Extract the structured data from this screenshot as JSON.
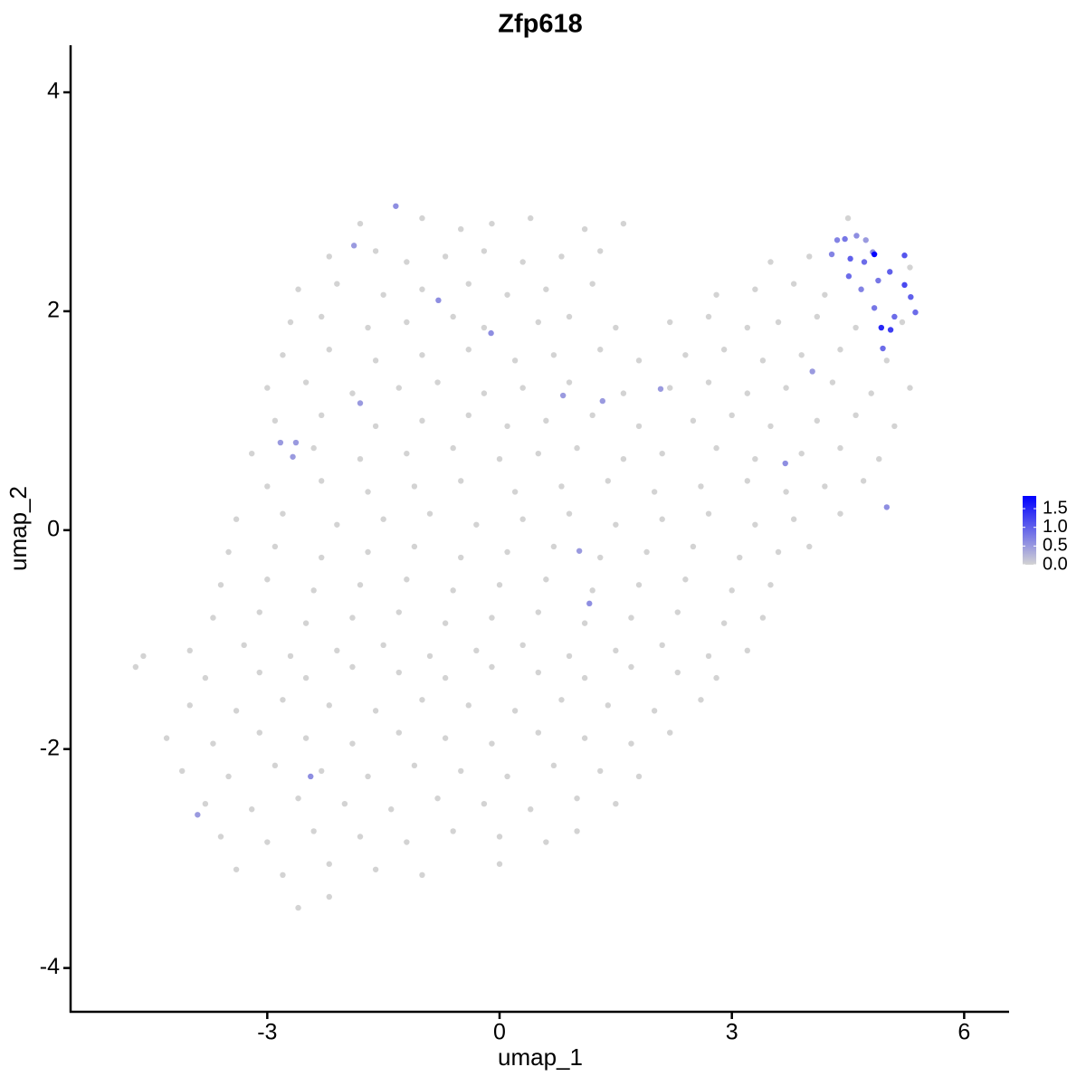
{
  "chart_data": {
    "type": "scatter",
    "title": "Zfp618",
    "xlabel": "umap_1",
    "ylabel": "umap_2",
    "xlim": [
      -5.54,
      6.58
    ],
    "ylim": [
      -4.4,
      4.43
    ],
    "xticks": [
      -3,
      0,
      3,
      6
    ],
    "yticks": [
      -4,
      -2,
      0,
      2,
      4
    ],
    "color_low": "#d3d3d3",
    "color_high": "#0000ff",
    "clim": [
      0,
      1.84
    ],
    "legend_ticks": [
      {
        "value": 0,
        "label": "0.0"
      },
      {
        "value": 0.5,
        "label": "0.5"
      },
      {
        "value": 1,
        "label": "1.0"
      },
      {
        "value": 1.5,
        "label": "1.5"
      }
    ],
    "x": [
      -1.8,
      -1.0,
      -0.5,
      -0.1,
      0.4,
      1.1,
      1.6,
      4.5,
      -2.2,
      -1.6,
      -1.2,
      -0.7,
      -0.2,
      0.3,
      0.8,
      1.3,
      3.5,
      4.0,
      5.3,
      -2.6,
      -2.1,
      -1.5,
      -1.0,
      -0.4,
      0.1,
      0.6,
      1.2,
      2.8,
      3.3,
      3.8,
      4.2,
      -2.7,
      -2.3,
      -1.7,
      -1.2,
      -0.6,
      -0.2,
      0.5,
      0.9,
      1.5,
      2.2,
      2.7,
      3.2,
      3.6,
      4.1,
      4.6,
      5.2,
      -2.8,
      -2.2,
      -1.6,
      -1.0,
      -0.4,
      0.2,
      0.7,
      1.3,
      1.8,
      2.4,
      2.9,
      3.4,
      3.9,
      4.4,
      5.0,
      -3.0,
      -2.5,
      -1.9,
      -1.3,
      -0.8,
      -0.2,
      0.3,
      0.9,
      1.6,
      2.2,
      2.7,
      3.2,
      3.7,
      4.3,
      4.8,
      5.3,
      -2.9,
      -2.3,
      -1.6,
      -1.0,
      -0.4,
      0.1,
      0.6,
      1.2,
      1.8,
      2.5,
      3.0,
      3.5,
      4.1,
      4.6,
      5.1,
      -3.2,
      -2.4,
      -1.8,
      -1.2,
      -0.6,
      0.0,
      0.5,
      1.0,
      1.6,
      2.1,
      2.8,
      3.3,
      3.9,
      4.4,
      4.9,
      -3.0,
      -2.3,
      -1.7,
      -1.1,
      -0.5,
      0.2,
      0.8,
      1.4,
      2.0,
      2.6,
      3.2,
      3.7,
      4.2,
      4.7,
      -3.4,
      -2.8,
      -2.1,
      -1.5,
      -0.9,
      -0.3,
      0.3,
      0.9,
      1.5,
      2.1,
      2.7,
      3.3,
      3.8,
      4.4,
      -3.5,
      -2.9,
      -2.3,
      -1.7,
      -1.1,
      -0.5,
      0.1,
      0.7,
      1.3,
      1.9,
      2.5,
      3.1,
      3.6,
      4.0,
      -3.6,
      -3.0,
      -2.4,
      -1.8,
      -1.2,
      -0.6,
      0.0,
      0.6,
      1.2,
      1.8,
      2.4,
      3.0,
      3.5,
      -3.7,
      -3.1,
      -2.5,
      -1.9,
      -1.3,
      -0.7,
      -0.1,
      0.5,
      1.1,
      1.7,
      2.3,
      2.9,
      3.4,
      -4.0,
      -3.3,
      -2.7,
      -2.1,
      -1.5,
      -0.9,
      -0.3,
      0.3,
      0.9,
      1.5,
      2.1,
      2.7,
      3.2,
      -4.7,
      -4.6,
      -3.8,
      -3.1,
      -2.5,
      -1.9,
      -1.3,
      -0.7,
      -0.1,
      0.5,
      1.1,
      1.7,
      2.3,
      2.8,
      -4.0,
      -3.4,
      -2.8,
      -2.2,
      -1.6,
      -1.0,
      -0.4,
      0.2,
      0.8,
      1.4,
      2.0,
      2.6,
      -4.3,
      -3.7,
      -3.1,
      -2.5,
      -1.9,
      -1.3,
      -0.7,
      -0.1,
      0.5,
      1.1,
      1.7,
      2.2,
      -4.1,
      -3.5,
      -2.9,
      -2.3,
      -1.7,
      -1.1,
      -0.5,
      0.1,
      0.7,
      1.3,
      1.8,
      -3.8,
      -3.2,
      -2.6,
      -2.0,
      -1.4,
      -0.8,
      -0.2,
      0.4,
      1.0,
      1.5,
      -3.6,
      -3.0,
      -2.4,
      -1.8,
      -1.2,
      -0.6,
      0.0,
      0.6,
      1.0,
      -3.4,
      -2.8,
      -2.2,
      -1.6,
      -1.0,
      0.0,
      -2.6,
      -2.2,
      4.46,
      4.82,
      4.29,
      4.53,
      4.84,
      4.71,
      5.04,
      5.23,
      5.23,
      5.31,
      5.37,
      4.89,
      4.51,
      4.67,
      4.84,
      4.93,
      5.05,
      5.1,
      4.95,
      4.36,
      4.61,
      4.73,
      5.0,
      3.69,
      4.04,
      2.08,
      1.33,
      0.82,
      -0.11,
      -0.79,
      -1.34,
      -1.88,
      -1.8,
      -2.83,
      -2.63,
      -2.67,
      1.03,
      1.16,
      -2.44,
      -3.9
    ],
    "y": [
      2.8,
      2.85,
      2.75,
      2.8,
      2.85,
      2.75,
      2.8,
      2.85,
      2.5,
      2.55,
      2.45,
      2.5,
      2.55,
      2.45,
      2.5,
      2.55,
      2.45,
      2.5,
      2.4,
      2.2,
      2.25,
      2.15,
      2.2,
      2.25,
      2.15,
      2.2,
      2.25,
      2.15,
      2.2,
      2.25,
      2.15,
      1.9,
      1.95,
      1.85,
      1.9,
      1.95,
      1.85,
      1.9,
      1.95,
      1.85,
      1.9,
      1.95,
      1.85,
      1.9,
      1.95,
      1.85,
      1.9,
      1.6,
      1.65,
      1.55,
      1.6,
      1.65,
      1.55,
      1.6,
      1.65,
      1.55,
      1.6,
      1.65,
      1.55,
      1.6,
      1.65,
      1.55,
      1.3,
      1.35,
      1.25,
      1.3,
      1.35,
      1.25,
      1.3,
      1.35,
      1.25,
      1.3,
      1.35,
      1.25,
      1.3,
      1.35,
      1.25,
      1.3,
      1.0,
      1.05,
      0.95,
      1.0,
      1.05,
      0.95,
      1.0,
      1.05,
      0.95,
      1.0,
      1.05,
      0.95,
      1.0,
      1.05,
      0.95,
      0.7,
      0.75,
      0.65,
      0.7,
      0.75,
      0.65,
      0.7,
      0.75,
      0.65,
      0.7,
      0.75,
      0.65,
      0.7,
      0.75,
      0.65,
      0.4,
      0.45,
      0.35,
      0.4,
      0.45,
      0.35,
      0.4,
      0.45,
      0.35,
      0.4,
      0.45,
      0.35,
      0.4,
      0.45,
      0.1,
      0.15,
      0.05,
      0.1,
      0.15,
      0.05,
      0.1,
      0.15,
      0.05,
      0.1,
      0.15,
      0.05,
      0.1,
      0.15,
      -0.2,
      -0.15,
      -0.25,
      -0.2,
      -0.15,
      -0.25,
      -0.2,
      -0.15,
      -0.25,
      -0.2,
      -0.15,
      -0.25,
      -0.2,
      -0.15,
      -0.5,
      -0.45,
      -0.55,
      -0.5,
      -0.45,
      -0.55,
      -0.5,
      -0.45,
      -0.55,
      -0.5,
      -0.45,
      -0.55,
      -0.5,
      -0.8,
      -0.75,
      -0.85,
      -0.8,
      -0.75,
      -0.85,
      -0.8,
      -0.75,
      -0.85,
      -0.8,
      -0.75,
      -0.85,
      -0.8,
      -1.1,
      -1.05,
      -1.15,
      -1.1,
      -1.05,
      -1.15,
      -1.1,
      -1.05,
      -1.15,
      -1.1,
      -1.05,
      -1.15,
      -1.1,
      -1.25,
      -1.15,
      -1.35,
      -1.3,
      -1.35,
      -1.25,
      -1.3,
      -1.35,
      -1.25,
      -1.3,
      -1.35,
      -1.25,
      -1.3,
      -1.35,
      -1.6,
      -1.65,
      -1.55,
      -1.6,
      -1.65,
      -1.55,
      -1.6,
      -1.65,
      -1.55,
      -1.6,
      -1.65,
      -1.55,
      -1.9,
      -1.95,
      -1.85,
      -1.9,
      -1.95,
      -1.85,
      -1.9,
      -1.95,
      -1.85,
      -1.9,
      -1.95,
      -1.85,
      -2.2,
      -2.25,
      -2.15,
      -2.2,
      -2.25,
      -2.15,
      -2.2,
      -2.25,
      -2.15,
      -2.2,
      -2.25,
      -2.5,
      -2.55,
      -2.45,
      -2.5,
      -2.55,
      -2.45,
      -2.5,
      -2.55,
      -2.45,
      -2.5,
      -2.8,
      -2.85,
      -2.75,
      -2.8,
      -2.85,
      -2.75,
      -2.8,
      -2.85,
      -2.75,
      -3.1,
      -3.15,
      -3.05,
      -3.1,
      -3.15,
      -3.05,
      -3.45,
      -3.35,
      2.66,
      2.54,
      2.52,
      2.48,
      2.52,
      2.45,
      2.36,
      2.51,
      2.24,
      2.13,
      1.99,
      2.28,
      2.32,
      2.2,
      2.03,
      1.85,
      1.83,
      1.95,
      1.66,
      2.65,
      2.69,
      2.65,
      0.21,
      0.61,
      1.45,
      1.29,
      1.18,
      1.23,
      1.8,
      2.1,
      2.96,
      2.6,
      1.16,
      0.8,
      0.8,
      0.67,
      -0.19,
      -0.67,
      -2.25,
      -2.6
    ],
    "values": [
      0,
      0,
      0,
      0,
      0,
      0,
      0,
      0,
      0,
      0,
      0,
      0,
      0,
      0,
      0,
      0,
      0,
      0,
      0,
      0,
      0,
      0,
      0,
      0,
      0,
      0,
      0,
      0,
      0,
      0,
      0,
      0,
      0,
      0,
      0,
      0,
      0,
      0,
      0,
      0,
      0,
      0,
      0,
      0,
      0,
      0,
      0,
      0,
      0,
      0,
      0,
      0,
      0,
      0,
      0,
      0,
      0,
      0,
      0,
      0,
      0,
      0,
      0,
      0,
      0,
      0,
      0,
      0,
      0,
      0,
      0,
      0,
      0,
      0,
      0,
      0,
      0,
      0,
      0,
      0,
      0,
      0,
      0,
      0,
      0,
      0,
      0,
      0,
      0,
      0,
      0,
      0,
      0,
      0,
      0,
      0,
      0,
      0,
      0,
      0,
      0,
      0,
      0,
      0,
      0,
      0,
      0,
      0,
      0,
      0,
      0,
      0,
      0,
      0,
      0,
      0,
      0,
      0,
      0,
      0,
      0,
      0,
      0,
      0,
      0,
      0,
      0,
      0,
      0,
      0,
      0,
      0,
      0,
      0,
      0,
      0,
      0,
      0,
      0,
      0,
      0,
      0,
      0,
      0,
      0,
      0,
      0,
      0,
      0,
      0,
      0,
      0,
      0,
      0,
      0,
      0,
      0,
      0,
      0,
      0,
      0,
      0,
      0,
      0,
      0,
      0,
      0,
      0,
      0,
      0,
      0,
      0,
      0,
      0,
      0,
      0,
      0,
      0,
      0,
      0,
      0,
      0,
      0,
      0,
      0,
      0,
      0,
      0,
      0,
      0,
      0,
      0,
      0,
      0,
      0,
      0,
      0,
      0,
      0,
      0,
      0,
      0,
      0,
      0,
      0,
      0,
      0,
      0,
      0,
      0,
      0,
      0,
      0,
      0,
      0,
      0,
      0,
      0,
      0,
      0,
      0,
      0,
      0,
      0,
      0,
      0,
      0,
      0,
      0,
      0,
      0,
      0,
      0,
      0,
      0,
      0,
      0,
      0,
      0,
      0,
      0,
      0,
      0,
      0,
      0,
      0,
      0,
      0,
      0,
      0,
      0,
      0,
      0,
      0,
      0,
      0,
      0,
      0,
      0,
      0,
      0,
      0,
      0,
      0,
      0,
      0.8,
      0.6,
      0.7,
      1.0,
      1.8,
      0.9,
      1.0,
      1.1,
      1.2,
      1.0,
      0.9,
      0.8,
      0.9,
      0.7,
      0.8,
      1.5,
      1.3,
      0.9,
      0.9,
      0.7,
      0.6,
      0.5,
      0.6,
      0.6,
      0.5,
      0.5,
      0.5,
      0.5,
      0.6,
      0.6,
      0.6,
      0.5,
      0.5,
      0.5,
      0.5,
      0.5,
      0.5,
      0.6,
      0.6,
      0.5
    ]
  }
}
